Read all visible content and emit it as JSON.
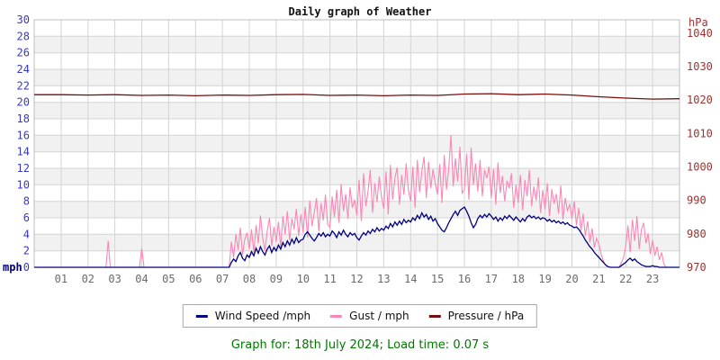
{
  "title": "Daily graph of Weather",
  "footer": {
    "text": "Graph for: 18th July 2024; Load time: 0.07 s"
  },
  "legend": [
    {
      "label": "Wind Speed /mph",
      "color": "#000080"
    },
    {
      "label": "Gust / mph",
      "color": "#fb86b5"
    },
    {
      "label": "Pressure / hPa",
      "color": "#7a0b0b"
    }
  ],
  "colors": {
    "band_gray": "#f1f1f1",
    "grid": "#d4d4d4",
    "plot_border": "#bdbdbd",
    "left_axis_text": "#3737c8",
    "left_axis_unit": "#000080",
    "right_axis_text": "#993333",
    "x_axis_text": "#6b6b6b"
  },
  "chart_data": {
    "type": "line",
    "title": "Daily graph of Weather",
    "x_axis": {
      "unit": "hour of day",
      "labels": [
        "01",
        "02",
        "03",
        "04",
        "05",
        "06",
        "07",
        "08",
        "09",
        "10",
        "11",
        "12",
        "13",
        "14",
        "15",
        "16",
        "17",
        "18",
        "19",
        "20",
        "21",
        "22",
        "23"
      ],
      "hours_min": 0,
      "hours_max": 24,
      "grid": true
    },
    "left_axis": {
      "unit": "mph",
      "min": 0,
      "max": 30,
      "tick_labels": [
        "0",
        "2",
        "4",
        "6",
        "8",
        "10",
        "12",
        "14",
        "16",
        "18",
        "20",
        "22",
        "24",
        "26",
        "28",
        "30"
      ],
      "grid": true
    },
    "right_axis": {
      "unit": "hPa",
      "min": 970,
      "max": 1044,
      "tick_labels": [
        "970",
        "980",
        "990",
        "1000",
        "1010",
        "1020",
        "1030",
        "1040"
      ]
    },
    "legend_position": "bottom",
    "series": [
      {
        "name": "Gust / mph",
        "axis": "left",
        "color": "#fb86b5",
        "width": 1.1,
        "step_minutes": 5,
        "values": [
          0,
          0,
          0,
          0,
          0,
          0,
          0,
          0,
          0,
          0,
          0,
          0,
          0,
          0,
          0,
          0,
          0,
          0,
          0,
          0,
          0,
          0,
          0,
          0,
          0,
          0,
          0,
          0,
          0,
          0,
          0,
          0,
          0,
          3.2,
          0,
          0,
          0,
          0,
          0,
          0,
          0,
          0,
          0,
          0,
          0,
          0,
          0,
          0,
          2.3,
          0,
          0,
          0,
          0,
          0,
          0,
          0,
          0,
          0,
          0,
          0,
          0,
          0,
          0,
          0,
          0,
          0,
          0,
          0,
          0,
          0,
          0,
          0,
          0,
          0,
          0,
          0,
          0,
          0,
          0,
          0,
          0,
          0,
          0,
          0,
          0,
          0,
          0,
          0,
          3.1,
          1.2,
          4.0,
          2.1,
          4.8,
          1.5,
          3.4,
          4.2,
          2.2,
          4.6,
          1.8,
          5.1,
          2.9,
          6.3,
          3.5,
          2.0,
          4.4,
          6.0,
          2.6,
          4.9,
          3.1,
          5.5,
          2.4,
          6.2,
          4.0,
          6.8,
          3.3,
          5.9,
          4.6,
          7.1,
          3.8,
          6.4,
          4.2,
          7.3,
          3.6,
          8.1,
          5.0,
          6.6,
          8.4,
          4.4,
          7.8,
          5.7,
          8.8,
          5.2,
          4.8,
          8.6,
          6.1,
          9.4,
          5.4,
          10.1,
          6.8,
          8.9,
          5.9,
          9.7,
          7.2,
          8.2,
          6.3,
          10.6,
          5.6,
          11.4,
          7.4,
          9.2,
          11.8,
          6.6,
          10.2,
          7.9,
          11.0,
          8.5,
          7.1,
          11.6,
          6.4,
          12.4,
          8.2,
          10.8,
          12.1,
          7.6,
          11.2,
          8.8,
          12.6,
          9.3,
          8.0,
          12.2,
          7.2,
          13.0,
          9.1,
          11.6,
          13.4,
          8.4,
          12.8,
          9.6,
          11.9,
          10.2,
          8.8,
          12.5,
          7.8,
          13.6,
          9.4,
          12.0,
          16.0,
          9.8,
          13.2,
          10.4,
          14.6,
          9.0,
          9.4,
          13.8,
          8.2,
          14.5,
          10.0,
          12.6,
          9.2,
          13.0,
          8.6,
          11.8,
          10.8,
          12.2,
          8.4,
          11.9,
          7.6,
          12.7,
          9.0,
          11.1,
          8.0,
          10.5,
          9.6,
          11.4,
          7.2,
          10.0,
          7.8,
          11.2,
          6.9,
          10.6,
          8.6,
          11.8,
          7.4,
          9.8,
          8.1,
          10.9,
          6.6,
          9.4,
          7.0,
          10.2,
          6.2,
          9.5,
          7.7,
          8.9,
          6.5,
          9.9,
          5.8,
          8.4,
          6.9,
          7.6,
          5.9,
          8.0,
          5.1,
          7.2,
          4.4,
          6.5,
          3.8,
          5.6,
          3.0,
          4.7,
          2.4,
          3.5,
          2.8,
          1.6,
          0.8,
          0.3,
          0,
          0,
          0,
          0,
          0,
          0,
          0.5,
          1.2,
          2.6,
          5.1,
          1.8,
          5.8,
          3.2,
          6.2,
          2.2,
          4.6,
          5.4,
          2.9,
          4.1,
          1.6,
          3.3,
          1.4,
          2.5,
          0.9,
          1.8,
          0.4,
          0,
          0,
          0,
          0,
          0,
          0
        ]
      },
      {
        "name": "Wind Speed /mph",
        "axis": "left",
        "color": "#000080",
        "width": 1.3,
        "step_minutes": 5,
        "values": [
          0,
          0,
          0,
          0,
          0,
          0,
          0,
          0,
          0,
          0,
          0,
          0,
          0,
          0,
          0,
          0,
          0,
          0,
          0,
          0,
          0,
          0,
          0,
          0,
          0,
          0,
          0,
          0,
          0,
          0,
          0,
          0,
          0,
          0,
          0,
          0,
          0,
          0,
          0,
          0,
          0,
          0,
          0,
          0,
          0,
          0,
          0,
          0,
          0,
          0,
          0,
          0,
          0,
          0,
          0,
          0,
          0,
          0,
          0,
          0,
          0,
          0,
          0,
          0,
          0,
          0,
          0,
          0,
          0,
          0,
          0,
          0,
          0,
          0,
          0,
          0,
          0,
          0,
          0,
          0,
          0,
          0,
          0,
          0,
          0,
          0,
          0,
          0,
          0.6,
          1.0,
          0.7,
          1.4,
          1.8,
          1.1,
          0.8,
          1.5,
          1.2,
          1.9,
          1.4,
          2.3,
          1.7,
          2.5,
          1.9,
          1.5,
          2.2,
          2.6,
          1.8,
          2.4,
          2.0,
          2.7,
          2.2,
          3.0,
          2.5,
          3.2,
          2.7,
          3.4,
          2.9,
          3.6,
          3.0,
          3.3,
          3.4,
          4.0,
          4.3,
          3.9,
          3.5,
          3.2,
          3.6,
          4.1,
          3.8,
          4.2,
          3.7,
          4.0,
          3.8,
          4.4,
          4.1,
          3.6,
          4.3,
          3.9,
          4.5,
          4.0,
          3.7,
          4.2,
          3.9,
          4.1,
          3.6,
          3.3,
          3.8,
          4.2,
          3.9,
          4.4,
          4.1,
          4.6,
          4.3,
          4.8,
          4.4,
          4.7,
          4.5,
          5.0,
          4.7,
          5.3,
          4.9,
          5.5,
          5.1,
          5.6,
          5.2,
          5.8,
          5.4,
          5.7,
          5.5,
          6.0,
          5.7,
          6.3,
          5.9,
          6.6,
          6.1,
          6.4,
          5.8,
          6.2,
          5.6,
          5.9,
          5.3,
          4.9,
          4.5,
          4.3,
          4.8,
          5.4,
          5.9,
          6.4,
          6.8,
          6.3,
          6.9,
          7.1,
          7.3,
          6.8,
          6.2,
          5.4,
          4.8,
          5.2,
          5.9,
          6.3,
          6.0,
          6.4,
          6.1,
          6.5,
          6.2,
          5.8,
          6.1,
          5.6,
          6.0,
          5.7,
          6.2,
          5.9,
          6.3,
          6.0,
          5.7,
          6.1,
          5.8,
          5.5,
          5.9,
          5.6,
          6.1,
          6.3,
          6.0,
          6.2,
          5.9,
          6.1,
          5.8,
          6.0,
          5.9,
          5.6,
          5.8,
          5.5,
          5.7,
          5.4,
          5.6,
          5.3,
          5.5,
          5.2,
          5.4,
          5.1,
          5.0,
          4.8,
          4.9,
          4.6,
          4.2,
          3.8,
          3.3,
          2.9,
          2.5,
          2.2,
          1.8,
          1.5,
          1.2,
          0.9,
          0.6,
          0.3,
          0.1,
          0,
          0,
          0,
          0,
          0,
          0.2,
          0.4,
          0.6,
          0.9,
          1.1,
          0.8,
          1.0,
          0.7,
          0.5,
          0.3,
          0.2,
          0.1,
          0.1,
          0.1,
          0.2,
          0.1,
          0.1,
          0,
          0,
          0,
          0,
          0,
          0,
          0,
          0,
          0
        ]
      },
      {
        "name": "Pressure / hPa",
        "axis": "right",
        "color": "#7a0b0b",
        "width": 1.3,
        "step_minutes": 60,
        "values": [
          1021.6,
          1021.6,
          1021.5,
          1021.6,
          1021.4,
          1021.5,
          1021.3,
          1021.5,
          1021.4,
          1021.6,
          1021.7,
          1021.4,
          1021.5,
          1021.3,
          1021.5,
          1021.4,
          1021.8,
          1021.9,
          1021.6,
          1021.8,
          1021.5,
          1021.0,
          1020.6,
          1020.3,
          1020.4
        ]
      }
    ]
  }
}
